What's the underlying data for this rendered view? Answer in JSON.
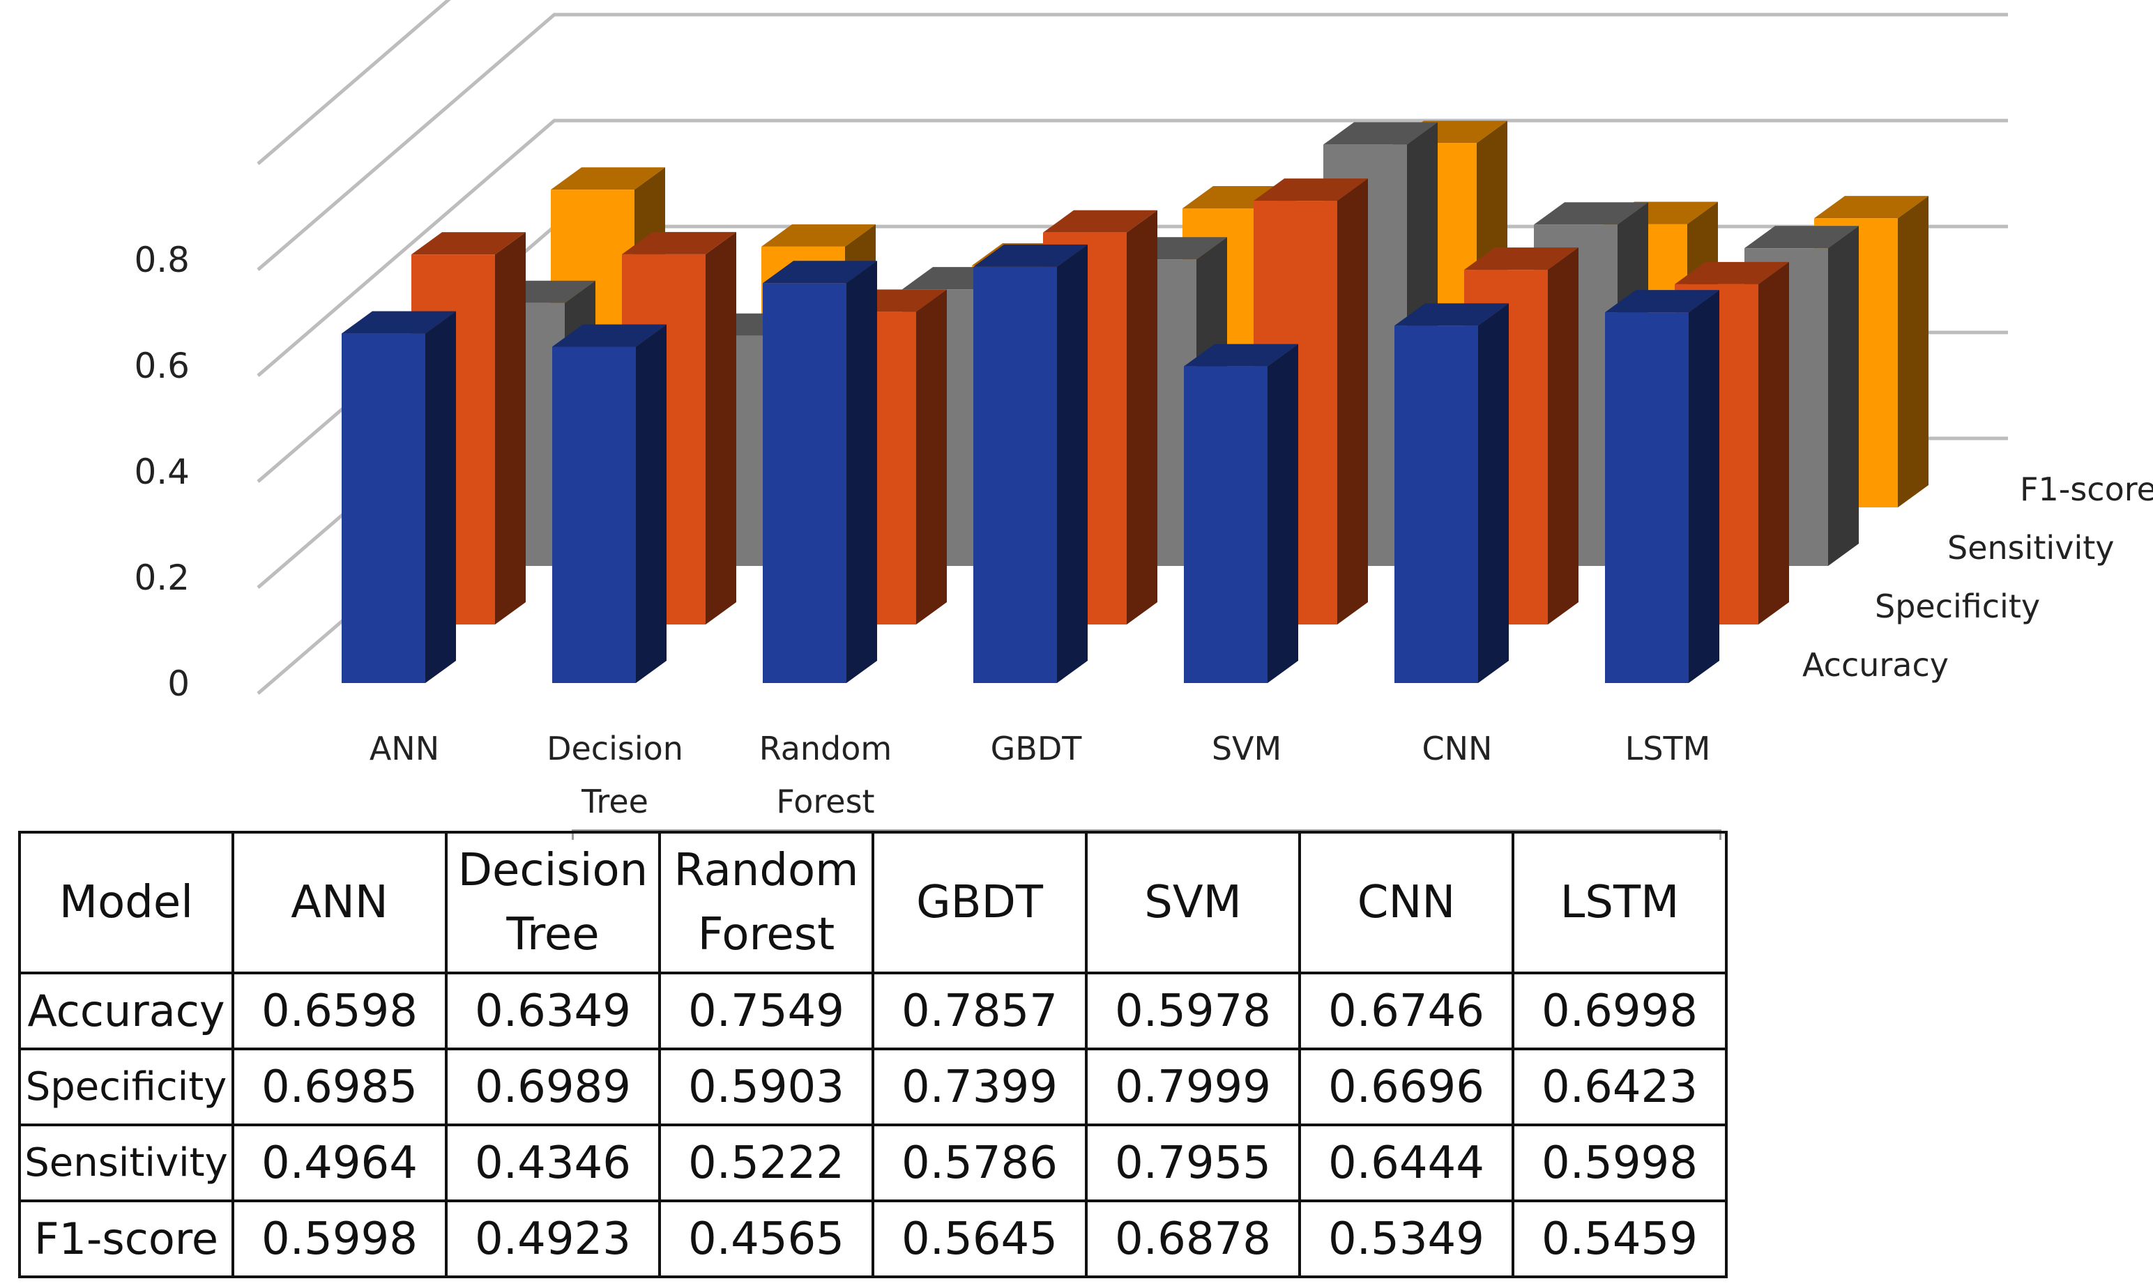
{
  "chart_data": {
    "type": "bar",
    "style": "3d-clustered",
    "categories": [
      "ANN",
      "Decision Tree",
      "Random Forest",
      "GBDT",
      "SVM",
      "CNN",
      "LSTM"
    ],
    "category_labels": [
      [
        "ANN"
      ],
      [
        "Decision",
        "Tree"
      ],
      [
        "Random",
        "Forest"
      ],
      [
        "GBDT"
      ],
      [
        "SVM"
      ],
      [
        "CNN"
      ],
      [
        "LSTM"
      ]
    ],
    "series": [
      {
        "name": "Accuracy",
        "color": "#1F3D99",
        "values": [
          0.6598,
          0.6349,
          0.7549,
          0.7857,
          0.5978,
          0.6746,
          0.6998
        ]
      },
      {
        "name": "Specificity",
        "color": "#D94E16",
        "values": [
          0.6985,
          0.6989,
          0.5903,
          0.7399,
          0.7999,
          0.6696,
          0.6423
        ]
      },
      {
        "name": "Sensitivity",
        "color": "#7A7A7A",
        "values": [
          0.4964,
          0.4346,
          0.5222,
          0.5786,
          0.7955,
          0.6444,
          0.5998
        ]
      },
      {
        "name": "F1-score",
        "color": "#FF9900",
        "values": [
          0.5998,
          0.4923,
          0.4565,
          0.5645,
          0.6878,
          0.5349,
          0.5459
        ]
      }
    ],
    "y_ticks": [
      "0",
      "0.2",
      "0.4",
      "0.6",
      "0.8"
    ],
    "ylim": [
      0,
      1
    ],
    "legend": "depth-axis-right",
    "grid": true
  },
  "table": {
    "header": [
      "Model",
      "ANN",
      "Decision Tree",
      "Random Forest",
      "GBDT",
      "SVM",
      "CNN",
      "LSTM"
    ],
    "header_lines": [
      [
        "Model"
      ],
      [
        "ANN"
      ],
      [
        "Decision",
        "Tree"
      ],
      [
        "Random",
        "Forest"
      ],
      [
        "GBDT"
      ],
      [
        "SVM"
      ],
      [
        "CNN"
      ],
      [
        "LSTM"
      ]
    ],
    "rows": [
      {
        "name": "Accuracy",
        "values": [
          "0.6598",
          "0.6349",
          "0.7549",
          "0.7857",
          "0.5978",
          "0.6746",
          "0.6998"
        ]
      },
      {
        "name": "Specificity",
        "values": [
          "0.6985",
          "0.6989",
          "0.5903",
          "0.7399",
          "0.7999",
          "0.6696",
          "0.6423"
        ]
      },
      {
        "name": "Sensitivity",
        "values": [
          "0.4964",
          "0.4346",
          "0.5222",
          "0.5786",
          "0.7955",
          "0.6444",
          "0.5998"
        ]
      },
      {
        "name": "F1-score",
        "values": [
          "0.5998",
          "0.4923",
          "0.4565",
          "0.5645",
          "0.6878",
          "0.5349",
          "0.5459"
        ]
      }
    ]
  }
}
